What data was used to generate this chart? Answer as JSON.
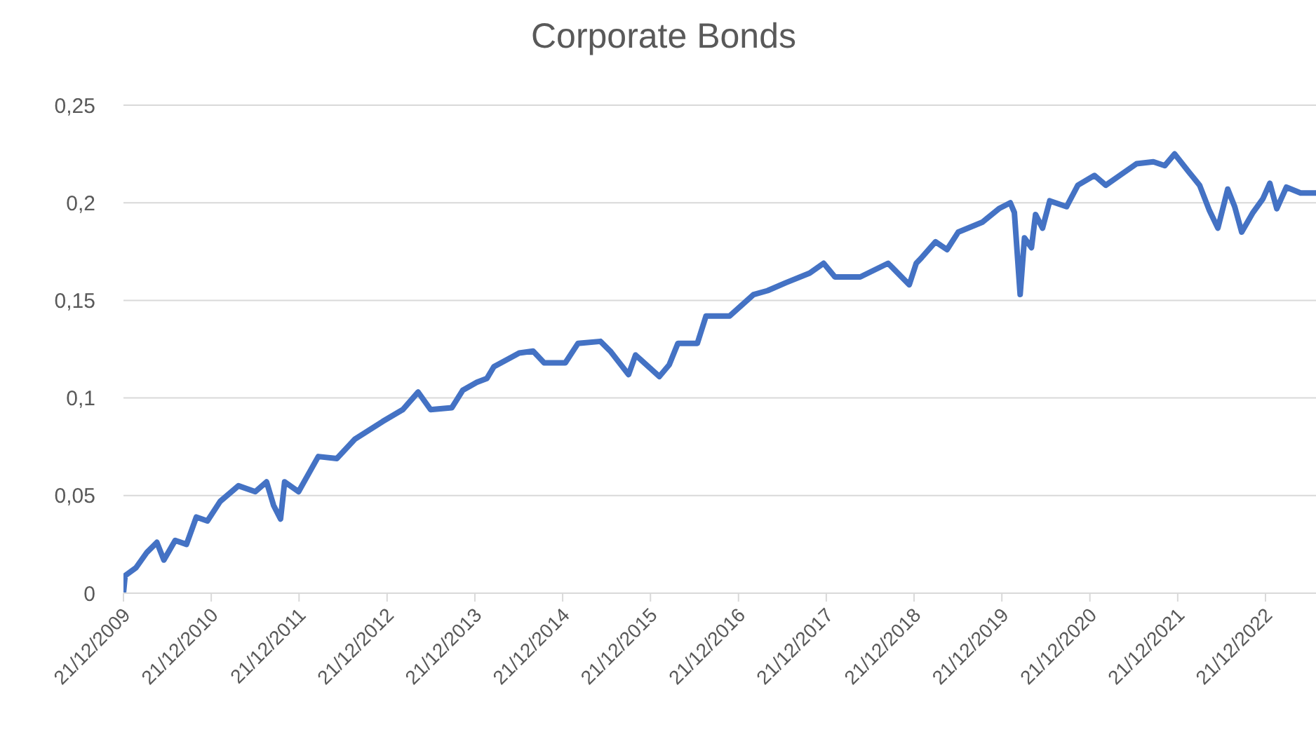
{
  "chart_data": {
    "type": "line",
    "title": "Corporate Bonds",
    "x": [
      "2009-12-21",
      "2009-12-28",
      "2010-02-11",
      "2010-03-29",
      "2010-05-09",
      "2010-06-07",
      "2010-07-24",
      "2010-09-09",
      "2010-10-20",
      "2010-12-05",
      "2011-01-27",
      "2011-04-13",
      "2011-06-22",
      "2011-08-08",
      "2011-09-06",
      "2011-10-05",
      "2011-10-22",
      "2011-12-19",
      "2012-03-10",
      "2012-05-26",
      "2012-08-10",
      "2012-12-03",
      "2013-02-24",
      "2013-04-29",
      "2013-06-20",
      "2013-09-16",
      "2013-11-01",
      "2013-12-29",
      "2014-02-09",
      "2014-03-10",
      "2014-06-23",
      "2014-08-20",
      "2014-10-05",
      "2015-01-01",
      "2015-02-23",
      "2015-05-27",
      "2015-07-07",
      "2015-09-21",
      "2015-10-20",
      "2016-01-27",
      "2016-03-08",
      "2016-04-13",
      "2016-07-03",
      "2016-08-08",
      "2016-11-14",
      "2017-02-22",
      "2017-04-21",
      "2017-07-05",
      "2017-10-13",
      "2017-12-10",
      "2018-01-26",
      "2018-05-11",
      "2018-09-04",
      "2018-12-01",
      "2018-12-30",
      "2019-01-22",
      "2019-03-20",
      "2019-05-07",
      "2019-06-23",
      "2019-09-30",
      "2019-12-09",
      "2020-01-25",
      "2020-02-11",
      "2020-03-06",
      "2020-03-24",
      "2020-04-22",
      "2020-05-09",
      "2020-06-07",
      "2020-07-07",
      "2020-09-15",
      "2020-11-01",
      "2021-01-09",
      "2021-02-25",
      "2021-04-24",
      "2021-07-03",
      "2021-09-11",
      "2021-10-28",
      "2021-12-08",
      "2022-02-04",
      "2022-03-22",
      "2022-05-02",
      "2022-06-06",
      "2022-07-17",
      "2022-08-15",
      "2022-09-13",
      "2022-10-30",
      "2022-12-10",
      "2023-01-08",
      "2023-02-06",
      "2023-03-18",
      "2023-05-16",
      "2023-07-19"
    ],
    "series": [
      {
        "color": "#4472c4",
        "values": [
          0,
          0.009,
          0.013,
          0.021,
          0.026,
          0.017,
          0.027,
          0.025,
          0.039,
          0.037,
          0.047,
          0.055,
          0.052,
          0.057,
          0.045,
          0.038,
          0.057,
          0.052,
          0.07,
          0.069,
          0.079,
          0.088,
          0.094,
          0.103,
          0.094,
          0.095,
          0.104,
          0.108,
          0.11,
          0.116,
          0.123,
          0.124,
          0.118,
          0.118,
          0.128,
          0.129,
          0.124,
          0.112,
          0.122,
          0.111,
          0.117,
          0.128,
          0.128,
          0.142,
          0.142,
          0.153,
          0.155,
          0.159,
          0.164,
          0.169,
          0.162,
          0.162,
          0.169,
          0.158,
          0.169,
          0.172,
          0.18,
          0.176,
          0.185,
          0.19,
          0.197,
          0.2,
          0.195,
          0.153,
          0.182,
          0.177,
          0.194,
          0.187,
          0.201,
          0.198,
          0.209,
          0.214,
          0.209,
          0.214,
          0.22,
          0.221,
          0.219,
          0.225,
          0.216,
          0.209,
          0.196,
          0.187,
          0.207,
          0.198,
          0.185,
          0.195,
          0.202,
          0.21,
          0.197,
          0.208,
          0.205,
          0.205
        ]
      }
    ],
    "xlim": [
      "2009-12-21",
      "2023-07-19"
    ],
    "xticks": [
      {
        "value": "2009-12-21",
        "label": "21/12/2009"
      },
      {
        "value": "2010-12-21",
        "label": "21/12/2010"
      },
      {
        "value": "2011-12-21",
        "label": "21/12/2011"
      },
      {
        "value": "2012-12-21",
        "label": "21/12/2012"
      },
      {
        "value": "2013-12-21",
        "label": "21/12/2013"
      },
      {
        "value": "2014-12-21",
        "label": "21/12/2014"
      },
      {
        "value": "2015-12-21",
        "label": "21/12/2015"
      },
      {
        "value": "2016-12-21",
        "label": "21/12/2016"
      },
      {
        "value": "2017-12-21",
        "label": "21/12/2017"
      },
      {
        "value": "2018-12-21",
        "label": "21/12/2018"
      },
      {
        "value": "2019-12-21",
        "label": "21/12/2019"
      },
      {
        "value": "2020-12-21",
        "label": "21/12/2020"
      },
      {
        "value": "2021-12-21",
        "label": "21/12/2021"
      },
      {
        "value": "2022-12-21",
        "label": "21/12/2022"
      }
    ],
    "ylim": [
      0,
      0.25
    ],
    "yticks": [
      0,
      {
        "value": 0.05,
        "label": "0,05"
      },
      {
        "value": 0.1,
        "label": "0,1"
      },
      {
        "value": 0.15,
        "label": "0,15"
      },
      {
        "value": 0.2,
        "label": "0,2"
      },
      {
        "value": 0.25,
        "label": "0,25"
      }
    ],
    "grid": "y",
    "legend": false,
    "marker": "none",
    "line_style": "solid"
  }
}
